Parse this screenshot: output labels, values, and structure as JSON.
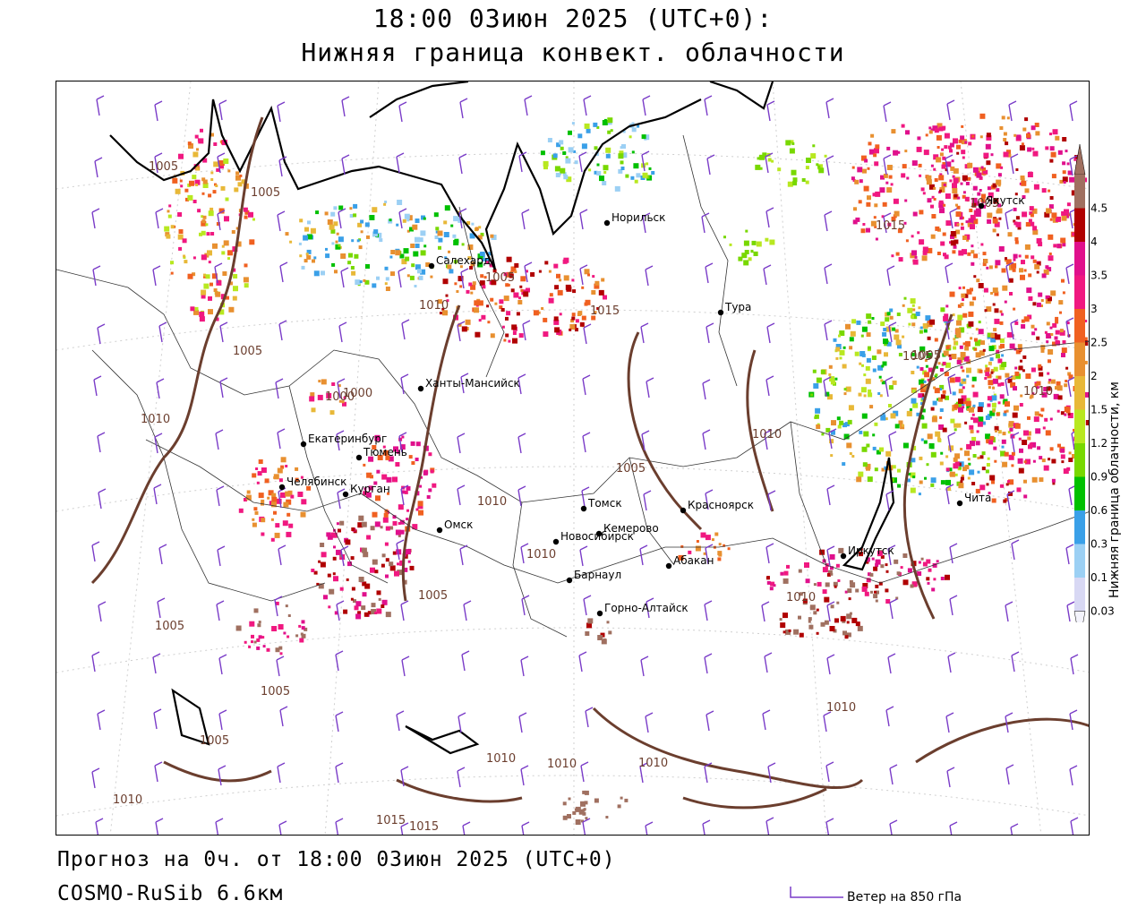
{
  "header": {
    "title_line1": "18:00 03июн 2025 (UTC+0):",
    "title_line2": "Нижняя граница конвект. облачности"
  },
  "footer": {
    "forecast_line": "Прогноз на 0ч. от 18:00 03июн 2025 (UTC+0)",
    "model_line": "COSMO-RuSib 6.6км",
    "wind_legend_label": "Ветер на 850 гПа"
  },
  "colorbar": {
    "title": "Нижняя граница облачности, км",
    "ticks": [
      "0.03",
      "0.1",
      "0.3",
      "0.6",
      "0.9",
      "1.2",
      "1.5",
      "2",
      "2.5",
      "3",
      "3.5",
      "4",
      "4.5"
    ],
    "colors": [
      "#d8d8f4",
      "#9cd0f4",
      "#3aa0e8",
      "#00c000",
      "#78d800",
      "#b8e820",
      "#e8b838",
      "#e89030",
      "#f06020",
      "#f01880",
      "#e0108c",
      "#b00000",
      "#a07060"
    ]
  },
  "cities": [
    {
      "name": "Норильск",
      "label": "Норильск"
    },
    {
      "name": "Салехард",
      "label": "Салехард"
    },
    {
      "name": "Тура",
      "label": "Тура"
    },
    {
      "name": "Ханты-Мансийск",
      "label": "Ханты-Мансийск"
    },
    {
      "name": "Екатеринбург",
      "label": "Екатеринбург"
    },
    {
      "name": "Тюмень",
      "label": "Тюмень"
    },
    {
      "name": "Челябинск",
      "label": "Челябинск"
    },
    {
      "name": "Курган",
      "label": "Курган"
    },
    {
      "name": "Омск",
      "label": "Омск"
    },
    {
      "name": "Томск",
      "label": "Томск"
    },
    {
      "name": "Красноярск",
      "label": "Красноярск"
    },
    {
      "name": "Новосибирск",
      "label": "Новосибирск"
    },
    {
      "name": "Кемерово",
      "label": "Кемерово"
    },
    {
      "name": "Абакан",
      "label": "Абакан"
    },
    {
      "name": "Барнаул",
      "label": "Барнаул"
    },
    {
      "name": "Горно-Алтайск",
      "label": "Горно-Алтайск"
    },
    {
      "name": "Иркутск",
      "label": "Иркутск"
    },
    {
      "name": "Чита",
      "label": "Чита"
    },
    {
      "name": "Якутск",
      "label": "Якутск"
    }
  ],
  "isobar_labels": [
    "1005",
    "1005",
    "1010",
    "1005",
    "1000",
    "1005",
    "1010",
    "1015",
    "1010",
    "1005",
    "1015",
    "1005",
    "1005",
    "1010",
    "1010",
    "1005",
    "1010",
    "1005",
    "1005",
    "1010",
    "1010",
    "1010",
    "1010",
    "1010",
    "1015",
    "1015",
    "1000",
    "1005",
    "1010",
    "1005"
  ],
  "colors": {
    "isobar": "#6b3e2e",
    "border": "#000000",
    "wind_barb": "#7a3cc8"
  }
}
